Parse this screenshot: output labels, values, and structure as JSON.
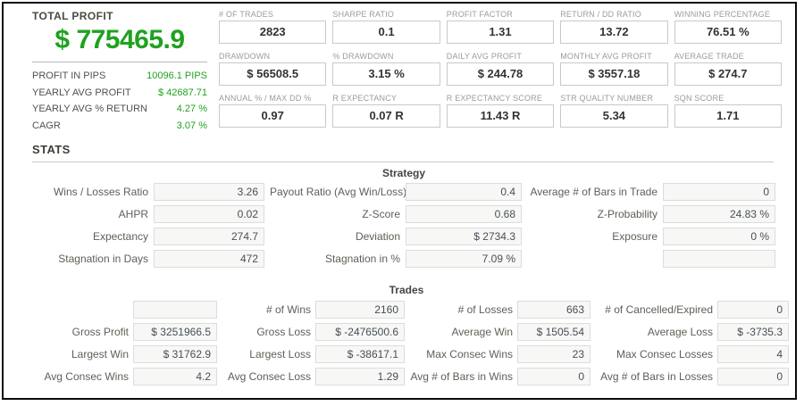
{
  "colors": {
    "accent_green": "#1fa21f",
    "frame": "#0a0a0a",
    "box_bg": "#f7f7f6"
  },
  "summary": {
    "title": "TOTAL PROFIT",
    "total": "$ 775465.9",
    "rows": [
      {
        "label": "PROFIT IN PIPS",
        "value": "10096.1 PIPS"
      },
      {
        "label": "YEARLY AVG PROFIT",
        "value": "$ 42687.71"
      },
      {
        "label": "YEARLY AVG % RETURN",
        "value": "4.27 %"
      },
      {
        "label": "CAGR",
        "value": "3.07 %"
      }
    ]
  },
  "metrics": {
    "cells": [
      {
        "label": "# OF TRADES",
        "value": "2823"
      },
      {
        "label": "SHARPE RATIO",
        "value": "0.1"
      },
      {
        "label": "PROFIT FACTOR",
        "value": "1.31"
      },
      {
        "label": "RETURN / DD RATIO",
        "value": "13.72"
      },
      {
        "label": "WINNING PERCENTAGE",
        "value": "76.51 %"
      },
      {
        "label": "DRAWDOWN",
        "value": "$ 56508.5"
      },
      {
        "label": "% DRAWDOWN",
        "value": "3.15 %"
      },
      {
        "label": "DAILY AVG PROFIT",
        "value": "$ 244.78"
      },
      {
        "label": "MONTHLY AVG PROFIT",
        "value": "$ 3557.18"
      },
      {
        "label": "AVERAGE TRADE",
        "value": "$ 274.7"
      },
      {
        "label": "ANNUAL % / MAX DD %",
        "value": "0.97"
      },
      {
        "label": "R EXPECTANCY",
        "value": "0.07 R"
      },
      {
        "label": "R EXPECTANCY SCORE",
        "value": "11.43 R"
      },
      {
        "label": "STR QUALITY NUMBER",
        "value": "5.34"
      },
      {
        "label": "SQN SCORE",
        "value": "1.71"
      }
    ]
  },
  "stats": {
    "heading": "STATS",
    "strategy": {
      "heading": "Strategy",
      "rows": [
        {
          "c1l": "Wins / Losses Ratio",
          "c1v": "3.26",
          "c2l": "Payout Ratio (Avg Win/Loss)",
          "c2v": "0.4",
          "c3l": "Average # of Bars in Trade",
          "c3v": "0"
        },
        {
          "c1l": "AHPR",
          "c1v": "0.02",
          "c2l": "Z-Score",
          "c2v": "0.68",
          "c3l": "Z-Probability",
          "c3v": "24.83 %"
        },
        {
          "c1l": "Expectancy",
          "c1v": "274.7",
          "c2l": "Deviation",
          "c2v": "$ 2734.3",
          "c3l": "Exposure",
          "c3v": "0 %"
        },
        {
          "c1l": "Stagnation in Days",
          "c1v": "472",
          "c2l": "Stagnation in %",
          "c2v": "7.09 %",
          "c3l": "",
          "c3v": ""
        }
      ]
    },
    "trades": {
      "heading": "Trades",
      "rows": [
        {
          "c1l": "",
          "c1v": "",
          "c2l": "# of Wins",
          "c2v": "2160",
          "c3l": "# of Losses",
          "c3v": "663",
          "c4l": "# of Cancelled/Expired",
          "c4v": "0"
        },
        {
          "c1l": "Gross Profit",
          "c1v": "$ 3251966.5",
          "c2l": "Gross Loss",
          "c2v": "$ -2476500.6",
          "c3l": "Average Win",
          "c3v": "$ 1505.54",
          "c4l": "Average Loss",
          "c4v": "$ -3735.3"
        },
        {
          "c1l": "Largest Win",
          "c1v": "$ 31762.9",
          "c2l": "Largest Loss",
          "c2v": "$ -38617.1",
          "c3l": "Max Consec Wins",
          "c3v": "23",
          "c4l": "Max Consec Losses",
          "c4v": "4"
        },
        {
          "c1l": "Avg Consec Wins",
          "c1v": "4.2",
          "c2l": "Avg Consec Loss",
          "c2v": "1.29",
          "c3l": "Avg # of Bars in Wins",
          "c3v": "0",
          "c4l": "Avg # of Bars in Losses",
          "c4v": "0"
        }
      ]
    }
  }
}
